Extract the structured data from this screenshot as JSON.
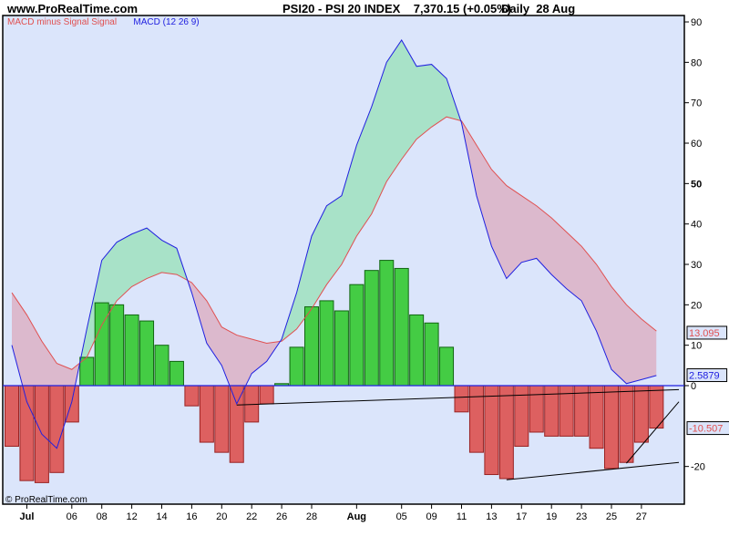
{
  "header": {
    "site": "www.ProRealTime.com",
    "title": "PSI20 - PSI 20 INDEX    7,370.15 (+0.05%)",
    "period": "Daily  28 Aug"
  },
  "copyright": "© ProRealTime.com",
  "chart_data": {
    "type": "bar+line",
    "legend": [
      {
        "text": "MACD minus Signal Signal",
        "color": "#e05050"
      },
      {
        "text": "MACD (12 26 9)",
        "color": "#2020e0"
      }
    ],
    "legend_placement": "top-left",
    "ylim": [
      -30,
      92
    ],
    "yticks": [
      {
        "v": 90,
        "label": "90"
      },
      {
        "v": 80,
        "label": "80"
      },
      {
        "v": 70,
        "label": "70"
      },
      {
        "v": 60,
        "label": "60"
      },
      {
        "v": 50,
        "label": "50"
      },
      {
        "v": 40,
        "label": "40"
      },
      {
        "v": 30,
        "label": "30"
      },
      {
        "v": 20,
        "label": "20"
      },
      {
        "v": 10,
        "label": "10"
      },
      {
        "v": 0,
        "label": "0"
      },
      {
        "v": -20,
        "label": "-20"
      }
    ],
    "xtick_labels": [
      {
        "i": 1,
        "label": "Jul",
        "bold": true
      },
      {
        "i": 4,
        "label": "06"
      },
      {
        "i": 6,
        "label": "08"
      },
      {
        "i": 8,
        "label": "12"
      },
      {
        "i": 10,
        "label": "14"
      },
      {
        "i": 12,
        "label": "16"
      },
      {
        "i": 14,
        "label": "20"
      },
      {
        "i": 16,
        "label": "22"
      },
      {
        "i": 18,
        "label": "26"
      },
      {
        "i": 20,
        "label": "28"
      },
      {
        "i": 23,
        "label": "Aug",
        "bold": true
      },
      {
        "i": 26,
        "label": "05"
      },
      {
        "i": 28,
        "label": "09"
      },
      {
        "i": 30,
        "label": "11"
      },
      {
        "i": 32,
        "label": "13"
      },
      {
        "i": 34,
        "label": "17"
      },
      {
        "i": 36,
        "label": "19"
      },
      {
        "i": 38,
        "label": "23"
      },
      {
        "i": 40,
        "label": "25"
      },
      {
        "i": 42,
        "label": "27"
      }
    ],
    "histogram": [
      -15,
      -23.5,
      -24,
      -21.5,
      -9,
      7,
      20.5,
      20,
      17.5,
      16,
      10,
      6,
      -5,
      -14,
      -16.5,
      -19,
      -9,
      -4.5,
      0.5,
      9.5,
      19.5,
      21,
      18.5,
      25,
      28.5,
      31,
      29,
      17.5,
      15.5,
      9.5,
      -6.5,
      -16.5,
      -22,
      -23,
      -15,
      -11.5,
      -12.5,
      -12.5,
      -12.5,
      -15.5,
      -20.5,
      -19,
      -14,
      -10.5
    ],
    "macd": [
      10,
      -4,
      -12,
      -15.5,
      -4,
      14,
      31,
      35.5,
      37.5,
      39,
      36,
      34,
      23,
      10.5,
      5,
      -4.5,
      3,
      6,
      11.5,
      23,
      37,
      44.5,
      47,
      59.5,
      69,
      80,
      85.5,
      79,
      79.5,
      76,
      65,
      47,
      34.5,
      26.5,
      30.5,
      31.5,
      27.5,
      24,
      21,
      13.5,
      4,
      0.5,
      1.5,
      2.5
    ],
    "signal": [
      23,
      17.5,
      11,
      5.5,
      4,
      7,
      15,
      21,
      24.5,
      26.5,
      28,
      27.5,
      25.5,
      21,
      14.5,
      12.5,
      11.5,
      10.5,
      11,
      14,
      19,
      25,
      30,
      37,
      42.5,
      50.5,
      56,
      61,
      64,
      66.5,
      65.5,
      59.5,
      53.5,
      49.5,
      47,
      44.5,
      41.5,
      38,
      34.5,
      30,
      24.5,
      20,
      16.5,
      13.5
    ],
    "last_values": [
      {
        "label": "13.095",
        "v": 13.095,
        "color": "#e05050"
      },
      {
        "label": "2.5879",
        "v": 2.5879,
        "color": "#2020e0"
      },
      {
        "label": "-10.507",
        "v": -10.507,
        "color": "#e05050"
      }
    ],
    "trendlines": [
      {
        "from": [
          15,
          -4.8
        ],
        "to": [
          44.5,
          -1
        ]
      },
      {
        "from": [
          33,
          -23.3
        ],
        "to": [
          44.5,
          -19
        ]
      },
      {
        "from": [
          41,
          -19.2
        ],
        "to": [
          44.5,
          -4
        ]
      }
    ],
    "colors": {
      "background": "#dbe5fb",
      "up_bar": "#44cc44",
      "down_bar": "#dd6060",
      "macd": "#2020e0",
      "signal": "#e05050",
      "fill_above": "#a8e2c8",
      "fill_below": "#dcb9cd"
    }
  }
}
